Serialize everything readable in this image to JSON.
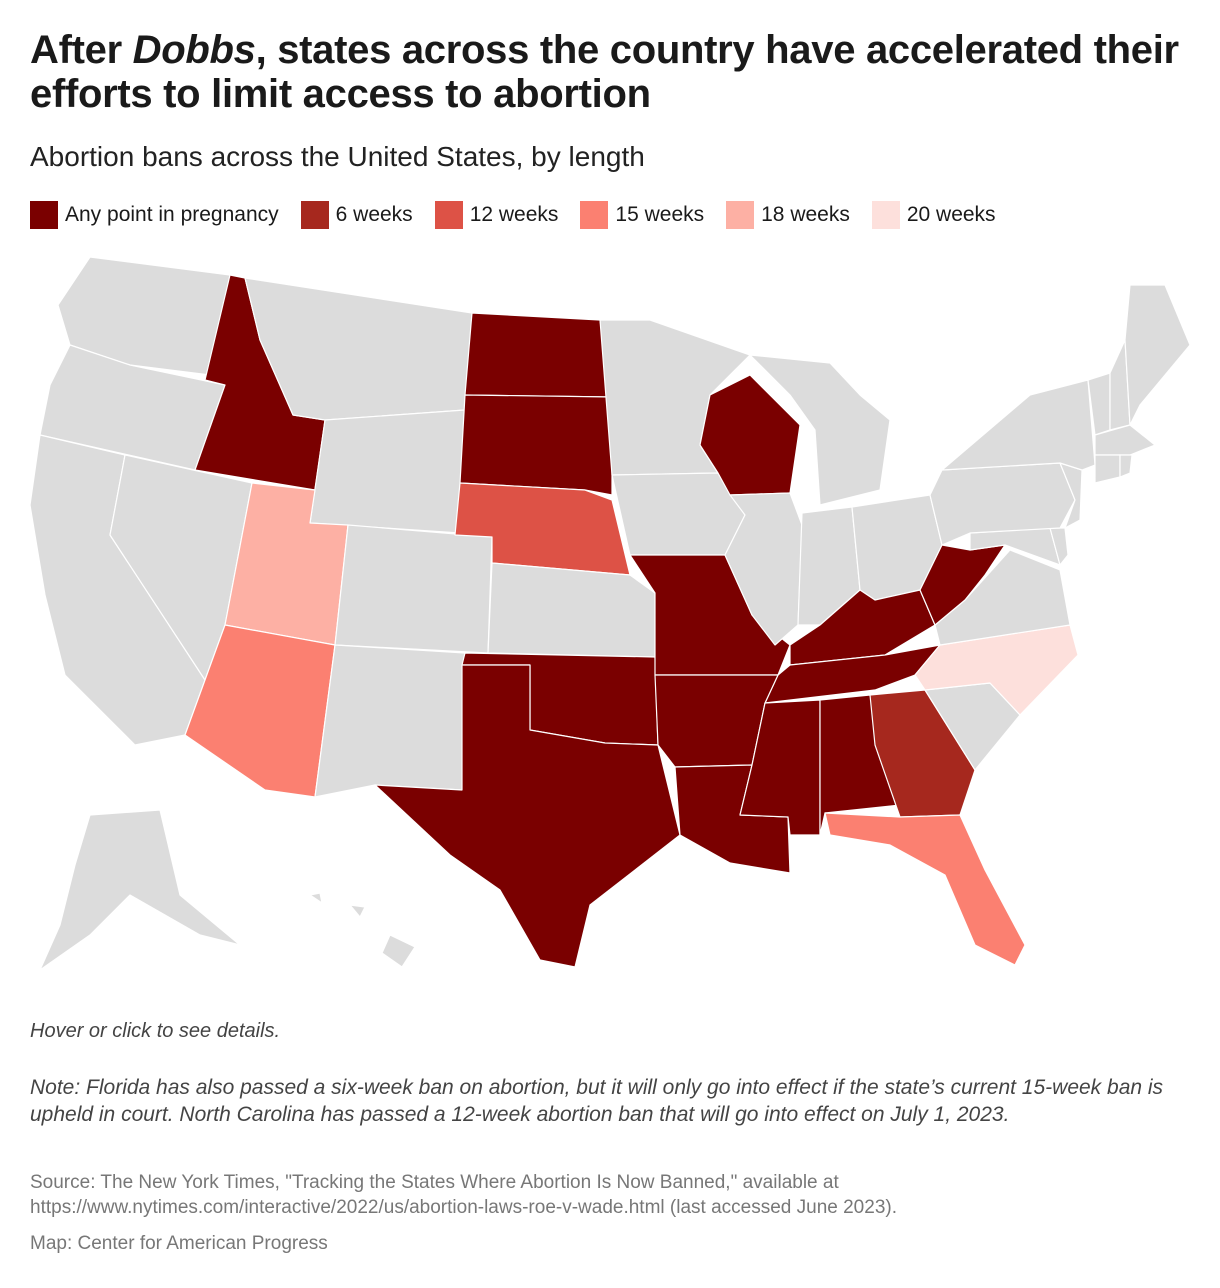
{
  "header": {
    "title_part1": "After ",
    "title_italic": "Dobbs",
    "title_part2": ", states across the country have accelerated their efforts to limit access to abortion",
    "subtitle": "Abortion bans across the United States, by length"
  },
  "legend": [
    {
      "label": "Any point in pregnancy",
      "color": "#7a0000"
    },
    {
      "label": "6 weeks",
      "color": "#a6281e"
    },
    {
      "label": "12 weeks",
      "color": "#dd5246"
    },
    {
      "label": "15 weeks",
      "color": "#fb8071"
    },
    {
      "label": "18 weeks",
      "color": "#fdb0a4"
    },
    {
      "label": "20 weeks",
      "color": "#fde0dc"
    }
  ],
  "map": {
    "no_ban_color": "#dcdcdc",
    "states": [
      {
        "id": "ID",
        "category": "Any point in pregnancy"
      },
      {
        "id": "ND",
        "category": "Any point in pregnancy"
      },
      {
        "id": "SD",
        "category": "Any point in pregnancy"
      },
      {
        "id": "WI",
        "category": "Any point in pregnancy"
      },
      {
        "id": "MO",
        "category": "Any point in pregnancy"
      },
      {
        "id": "KY",
        "category": "Any point in pregnancy"
      },
      {
        "id": "WV",
        "category": "Any point in pregnancy"
      },
      {
        "id": "TN",
        "category": "Any point in pregnancy"
      },
      {
        "id": "OK",
        "category": "Any point in pregnancy"
      },
      {
        "id": "TX",
        "category": "Any point in pregnancy"
      },
      {
        "id": "AR",
        "category": "Any point in pregnancy"
      },
      {
        "id": "LA",
        "category": "Any point in pregnancy"
      },
      {
        "id": "MS",
        "category": "Any point in pregnancy"
      },
      {
        "id": "AL",
        "category": "Any point in pregnancy"
      },
      {
        "id": "GA",
        "category": "6 weeks"
      },
      {
        "id": "NE",
        "category": "12 weeks"
      },
      {
        "id": "AZ",
        "category": "15 weeks"
      },
      {
        "id": "FL",
        "category": "15 weeks"
      },
      {
        "id": "UT",
        "category": "18 weeks"
      },
      {
        "id": "NC",
        "category": "20 weeks"
      },
      {
        "id": "WA",
        "category": null
      },
      {
        "id": "OR",
        "category": null
      },
      {
        "id": "CA",
        "category": null
      },
      {
        "id": "NV",
        "category": null
      },
      {
        "id": "MT",
        "category": null
      },
      {
        "id": "WY",
        "category": null
      },
      {
        "id": "CO",
        "category": null
      },
      {
        "id": "NM",
        "category": null
      },
      {
        "id": "KS",
        "category": null
      },
      {
        "id": "MN",
        "category": null
      },
      {
        "id": "IA",
        "category": null
      },
      {
        "id": "IL",
        "category": null
      },
      {
        "id": "MI",
        "category": null
      },
      {
        "id": "IN",
        "category": null
      },
      {
        "id": "OH",
        "category": null
      },
      {
        "id": "PA",
        "category": null
      },
      {
        "id": "NY",
        "category": null
      },
      {
        "id": "VT",
        "category": null
      },
      {
        "id": "NH",
        "category": null
      },
      {
        "id": "ME",
        "category": null
      },
      {
        "id": "MA",
        "category": null
      },
      {
        "id": "CT",
        "category": null
      },
      {
        "id": "RI",
        "category": null
      },
      {
        "id": "NJ",
        "category": null
      },
      {
        "id": "DE",
        "category": null
      },
      {
        "id": "MD",
        "category": null
      },
      {
        "id": "VA",
        "category": null
      },
      {
        "id": "SC",
        "category": null
      },
      {
        "id": "AK",
        "category": null
      },
      {
        "id": "HI",
        "category": null
      }
    ]
  },
  "footer": {
    "hover_note": "Hover or click to see details.",
    "note": "Note: Florida has also passed a six-week ban on abortion, but it will only go into effect if the state’s current 15-week ban is upheld in court. North Carolina has passed a 12-week abortion ban that will go into effect on July 1, 2023.",
    "source_line1": "Source: The New York Times, \"Tracking the States Where Abortion Is Now Banned,\" available at",
    "source_line2": "https://www.nytimes.com/interactive/2022/us/abortion-laws-roe-v-wade.html (last accessed June 2023).",
    "credit": "Map: Center for American Progress"
  }
}
